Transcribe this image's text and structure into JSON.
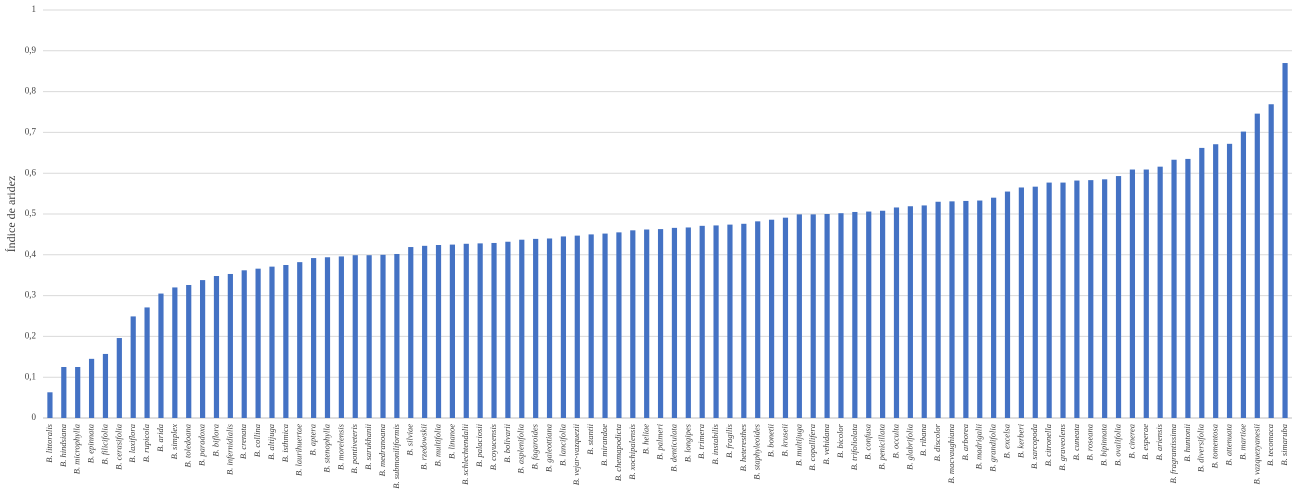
{
  "chart_data": {
    "type": "bar",
    "y_label": "Índice de aridez",
    "color": "#4472c4",
    "grid": true,
    "ylim": [
      0,
      1
    ],
    "yticks": [
      0,
      {
        "value": 0.1,
        "label": "0,1"
      },
      {
        "value": 0.2,
        "label": "0,2"
      },
      {
        "value": 0.3,
        "label": "0,3"
      },
      {
        "value": 0.4,
        "label": "0,4"
      },
      {
        "value": 0.5,
        "label": "0,5"
      },
      {
        "value": 0.6,
        "label": "0,6"
      },
      {
        "value": 0.7,
        "label": "0,7"
      },
      {
        "value": 0.8,
        "label": "0,8"
      },
      {
        "value": 0.9,
        "label": "0,9"
      },
      1
    ],
    "categories": [
      "B. littoralis",
      "B. hindsiana",
      "B. microphylla",
      "B. epinnata",
      "B. filicifolia",
      "B. cerasifolia",
      "B. laxiflora",
      "B. rupicola",
      "B. arida",
      "B. simplex",
      "B. toledoana",
      "B. paradoxa",
      "B. biflora",
      "B. infernidialis",
      "B. crenata",
      "B. collina",
      "B. altijuga",
      "B. isthmica",
      "B. laurihuertae",
      "B. aptera",
      "B. stenophylla",
      "B. morelensis",
      "B. pontiveteris",
      "B. sarukhanii",
      "B. medranoana",
      "B. submoniliformis",
      "B. silviae",
      "B. rzedowskii",
      "B. multifolia",
      "B. linanoe",
      "B. schlechtendalii",
      "B. palaciosii",
      "B. coyucensis",
      "B. bolivarii",
      "B. asplenifolia",
      "B. fagaroides",
      "B. galeottiana",
      "B. lancifolia",
      "B. vejar-vazquezii",
      "B. stantii",
      "B. mirandae",
      "B. chemapodicta",
      "B. xochipalensis",
      "B. heliae",
      "B. palmeri",
      "B. denticulata",
      "B. longipes",
      "B. trimera",
      "B. instabilis",
      "B. fragilis",
      "B. heteresthes",
      "B. staphyleoides",
      "B. bonetii",
      "B. kruseii",
      "B. multijuga",
      "B. copallifera",
      "B. vehidana",
      "B. bicolor",
      "B. trifoliolata",
      "B. confusa",
      "B. penicillata",
      "B. occulta",
      "B. glabrifolia",
      "B. ribana",
      "B. discolor",
      "B. macvaughiana",
      "B. arborea",
      "B. madrigalii",
      "B. grandifolia",
      "B. excelsa",
      "B. kerberi",
      "B. sarcopoda",
      "B. citronella",
      "B. graveolens",
      "B. cuneata",
      "B. roseana",
      "B. bipinnata",
      "B. ovalifolia",
      "B. cinerea",
      "B. esperae",
      "B. ariensis",
      "B. fragrantissima",
      "B. huntonii",
      "B. diversifolia",
      "B. tomentosa",
      "B. attenuata",
      "B. martiae",
      "B. vazquezyanesii",
      "B. tecomaca",
      "B. simaruba"
    ],
    "values": [
      0.063,
      0.125,
      0.125,
      0.145,
      0.157,
      0.196,
      0.249,
      0.271,
      0.305,
      0.32,
      0.326,
      0.338,
      0.348,
      0.353,
      0.362,
      0.366,
      0.371,
      0.375,
      0.382,
      0.392,
      0.394,
      0.396,
      0.399,
      0.399,
      0.4,
      0.402,
      0.419,
      0.422,
      0.424,
      0.425,
      0.427,
      0.428,
      0.429,
      0.432,
      0.437,
      0.439,
      0.44,
      0.445,
      0.447,
      0.45,
      0.452,
      0.455,
      0.46,
      0.462,
      0.463,
      0.466,
      0.467,
      0.471,
      0.472,
      0.474,
      0.476,
      0.482,
      0.486,
      0.491,
      0.499,
      0.499,
      0.5,
      0.502,
      0.505,
      0.506,
      0.508,
      0.516,
      0.519,
      0.521,
      0.53,
      0.531,
      0.532,
      0.533,
      0.54,
      0.555,
      0.565,
      0.567,
      0.577,
      0.577,
      0.582,
      0.583,
      0.585,
      0.593,
      0.609,
      0.609,
      0.616,
      0.633,
      0.635,
      0.662,
      0.671,
      0.672,
      0.702,
      0.746,
      0.769,
      0.87
    ]
  }
}
